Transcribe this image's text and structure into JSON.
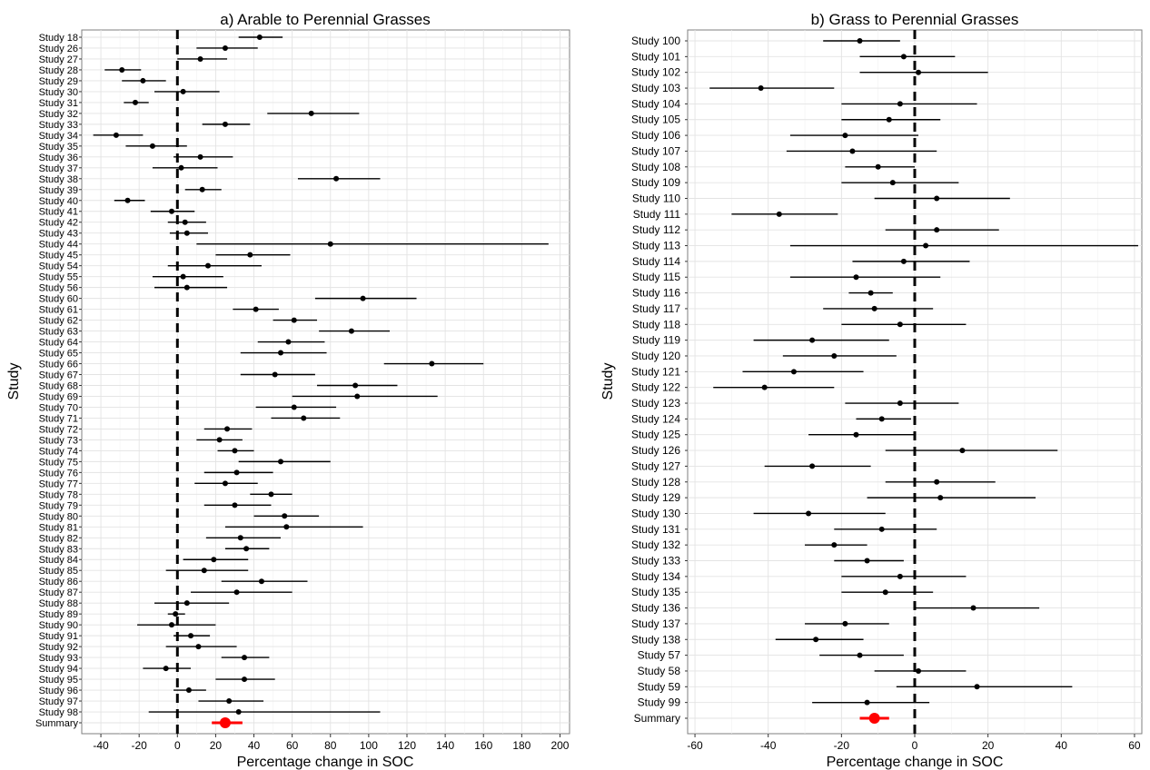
{
  "chart_data": [
    {
      "panel": "a",
      "type": "forest",
      "title": "a) Arable to Perennial Grasses",
      "xlabel": "Percentage change in SOC",
      "ylabel": "Study",
      "xlim": [
        -50,
        205
      ],
      "xticks": [
        -40,
        -20,
        0,
        20,
        40,
        60,
        80,
        100,
        120,
        140,
        160,
        180,
        200
      ],
      "reference_line": 0,
      "studies": [
        {
          "label": "Study 18",
          "est": 43,
          "lo": 32,
          "hi": 55
        },
        {
          "label": "Study 26",
          "est": 25,
          "lo": 10,
          "hi": 42
        },
        {
          "label": "Study 27",
          "est": 12,
          "lo": 0,
          "hi": 26
        },
        {
          "label": "Study 28",
          "est": -29,
          "lo": -38,
          "hi": -19
        },
        {
          "label": "Study 29",
          "est": -18,
          "lo": -29,
          "hi": -6
        },
        {
          "label": "Study 30",
          "est": 3,
          "lo": -12,
          "hi": 22
        },
        {
          "label": "Study 31",
          "est": -22,
          "lo": -28,
          "hi": -15
        },
        {
          "label": "Study 32",
          "est": 70,
          "lo": 47,
          "hi": 95
        },
        {
          "label": "Study 33",
          "est": 25,
          "lo": 13,
          "hi": 38
        },
        {
          "label": "Study 34",
          "est": -32,
          "lo": -44,
          "hi": -18
        },
        {
          "label": "Study 35",
          "est": -13,
          "lo": -27,
          "hi": 5
        },
        {
          "label": "Study 36",
          "est": 12,
          "lo": -2,
          "hi": 29
        },
        {
          "label": "Study 37",
          "est": 2,
          "lo": -13,
          "hi": 21
        },
        {
          "label": "Study 38",
          "est": 83,
          "lo": 63,
          "hi": 106
        },
        {
          "label": "Study 39",
          "est": 13,
          "lo": 4,
          "hi": 23
        },
        {
          "label": "Study 40",
          "est": -26,
          "lo": -33,
          "hi": -17
        },
        {
          "label": "Study 41",
          "est": -3,
          "lo": -14,
          "hi": 9
        },
        {
          "label": "Study 42",
          "est": 4,
          "lo": -5,
          "hi": 15
        },
        {
          "label": "Study 43",
          "est": 5,
          "lo": -4,
          "hi": 16
        },
        {
          "label": "Study 44",
          "est": 80,
          "lo": 10,
          "hi": 194
        },
        {
          "label": "Study 45",
          "est": 38,
          "lo": 20,
          "hi": 59
        },
        {
          "label": "Study 54",
          "est": 16,
          "lo": -5,
          "hi": 44
        },
        {
          "label": "Study 55",
          "est": 3,
          "lo": -13,
          "hi": 24
        },
        {
          "label": "Study 56",
          "est": 5,
          "lo": -12,
          "hi": 26
        },
        {
          "label": "Study 60",
          "est": 97,
          "lo": 72,
          "hi": 125
        },
        {
          "label": "Study 61",
          "est": 41,
          "lo": 29,
          "hi": 53
        },
        {
          "label": "Study 62",
          "est": 61,
          "lo": 50,
          "hi": 73
        },
        {
          "label": "Study 63",
          "est": 91,
          "lo": 74,
          "hi": 111
        },
        {
          "label": "Study 64",
          "est": 58,
          "lo": 42,
          "hi": 77
        },
        {
          "label": "Study 65",
          "est": 54,
          "lo": 33,
          "hi": 78
        },
        {
          "label": "Study 66",
          "est": 133,
          "lo": 108,
          "hi": 160
        },
        {
          "label": "Study 67",
          "est": 51,
          "lo": 33,
          "hi": 72
        },
        {
          "label": "Study 68",
          "est": 93,
          "lo": 73,
          "hi": 115
        },
        {
          "label": "Study 69",
          "est": 94,
          "lo": 60,
          "hi": 136
        },
        {
          "label": "Study 70",
          "est": 61,
          "lo": 41,
          "hi": 83
        },
        {
          "label": "Study 71",
          "est": 66,
          "lo": 49,
          "hi": 85
        },
        {
          "label": "Study 72",
          "est": 26,
          "lo": 14,
          "hi": 39
        },
        {
          "label": "Study 73",
          "est": 22,
          "lo": 10,
          "hi": 34
        },
        {
          "label": "Study 74",
          "est": 30,
          "lo": 21,
          "hi": 40
        },
        {
          "label": "Study 75",
          "est": 54,
          "lo": 32,
          "hi": 80
        },
        {
          "label": "Study 76",
          "est": 31,
          "lo": 14,
          "hi": 50
        },
        {
          "label": "Study 77",
          "est": 25,
          "lo": 9,
          "hi": 42
        },
        {
          "label": "Study 78",
          "est": 49,
          "lo": 38,
          "hi": 60
        },
        {
          "label": "Study 79",
          "est": 30,
          "lo": 14,
          "hi": 49
        },
        {
          "label": "Study 80",
          "est": 56,
          "lo": 40,
          "hi": 74
        },
        {
          "label": "Study 81",
          "est": 57,
          "lo": 25,
          "hi": 97
        },
        {
          "label": "Study 82",
          "est": 33,
          "lo": 15,
          "hi": 54
        },
        {
          "label": "Study 83",
          "est": 36,
          "lo": 25,
          "hi": 48
        },
        {
          "label": "Study 84",
          "est": 19,
          "lo": 3,
          "hi": 37
        },
        {
          "label": "Study 85",
          "est": 14,
          "lo": -6,
          "hi": 37
        },
        {
          "label": "Study 86",
          "est": 44,
          "lo": 23,
          "hi": 68
        },
        {
          "label": "Study 87",
          "est": 31,
          "lo": 7,
          "hi": 60
        },
        {
          "label": "Study 88",
          "est": 5,
          "lo": -12,
          "hi": 27
        },
        {
          "label": "Study 89",
          "est": -1,
          "lo": -5,
          "hi": 4
        },
        {
          "label": "Study 90",
          "est": -3,
          "lo": -21,
          "hi": 20
        },
        {
          "label": "Study 91",
          "est": 7,
          "lo": -2,
          "hi": 17
        },
        {
          "label": "Study 92",
          "est": 11,
          "lo": -6,
          "hi": 31
        },
        {
          "label": "Study 93",
          "est": 35,
          "lo": 23,
          "hi": 48
        },
        {
          "label": "Study 94",
          "est": -6,
          "lo": -18,
          "hi": 7
        },
        {
          "label": "Study 95",
          "est": 35,
          "lo": 20,
          "hi": 51
        },
        {
          "label": "Study 96",
          "est": 6,
          "lo": -2,
          "hi": 15
        },
        {
          "label": "Study 97",
          "est": 27,
          "lo": 11,
          "hi": 45
        },
        {
          "label": "Study 98",
          "est": 32,
          "lo": -15,
          "hi": 106
        }
      ],
      "summary": {
        "label": "Summary",
        "est": 25,
        "lo": 18,
        "hi": 34
      }
    },
    {
      "panel": "b",
      "type": "forest",
      "title": "b) Grass to Perennial Grasses",
      "xlabel": "Percentage change in SOC",
      "ylabel": "Study",
      "xlim": [
        -62,
        62
      ],
      "xticks": [
        -60,
        -40,
        -20,
        0,
        20,
        40,
        60
      ],
      "reference_line": 0,
      "studies": [
        {
          "label": "Study 100",
          "est": -15,
          "lo": -25,
          "hi": -4
        },
        {
          "label": "Study 101",
          "est": -3,
          "lo": -15,
          "hi": 11
        },
        {
          "label": "Study 102",
          "est": 1,
          "lo": -15,
          "hi": 20
        },
        {
          "label": "Study 103",
          "est": -42,
          "lo": -56,
          "hi": -22
        },
        {
          "label": "Study 104",
          "est": -4,
          "lo": -20,
          "hi": 17
        },
        {
          "label": "Study 105",
          "est": -7,
          "lo": -20,
          "hi": 7
        },
        {
          "label": "Study 106",
          "est": -19,
          "lo": -34,
          "hi": 1
        },
        {
          "label": "Study 107",
          "est": -17,
          "lo": -35,
          "hi": 6
        },
        {
          "label": "Study 108",
          "est": -10,
          "lo": -19,
          "hi": 0
        },
        {
          "label": "Study 109",
          "est": -6,
          "lo": -20,
          "hi": 12
        },
        {
          "label": "Study 110",
          "est": 6,
          "lo": -11,
          "hi": 26
        },
        {
          "label": "Study 111",
          "est": -37,
          "lo": -50,
          "hi": -21
        },
        {
          "label": "Study 112",
          "est": 6,
          "lo": -8,
          "hi": 23
        },
        {
          "label": "Study 113",
          "est": 3,
          "lo": -34,
          "hi": 61
        },
        {
          "label": "Study 114",
          "est": -3,
          "lo": -17,
          "hi": 15
        },
        {
          "label": "Study 115",
          "est": -16,
          "lo": -34,
          "hi": 7
        },
        {
          "label": "Study 116",
          "est": -12,
          "lo": -18,
          "hi": -6
        },
        {
          "label": "Study 117",
          "est": -11,
          "lo": -25,
          "hi": 5
        },
        {
          "label": "Study 118",
          "est": -4,
          "lo": -20,
          "hi": 14
        },
        {
          "label": "Study 119",
          "est": -28,
          "lo": -44,
          "hi": -7
        },
        {
          "label": "Study 120",
          "est": -22,
          "lo": -36,
          "hi": -5
        },
        {
          "label": "Study 121",
          "est": -33,
          "lo": -47,
          "hi": -14
        },
        {
          "label": "Study 122",
          "est": -41,
          "lo": -55,
          "hi": -22
        },
        {
          "label": "Study 123",
          "est": -4,
          "lo": -19,
          "hi": 12
        },
        {
          "label": "Study 124",
          "est": -9,
          "lo": -16,
          "hi": -1
        },
        {
          "label": "Study 125",
          "est": -16,
          "lo": -29,
          "hi": 0
        },
        {
          "label": "Study 126",
          "est": 13,
          "lo": -8,
          "hi": 39
        },
        {
          "label": "Study 127",
          "est": -28,
          "lo": -41,
          "hi": -12
        },
        {
          "label": "Study 128",
          "est": 6,
          "lo": -8,
          "hi": 22
        },
        {
          "label": "Study 129",
          "est": 7,
          "lo": -13,
          "hi": 33
        },
        {
          "label": "Study 130",
          "est": -29,
          "lo": -44,
          "hi": -8
        },
        {
          "label": "Study 131",
          "est": -9,
          "lo": -22,
          "hi": 6
        },
        {
          "label": "Study 132",
          "est": -22,
          "lo": -30,
          "hi": -13
        },
        {
          "label": "Study 133",
          "est": -13,
          "lo": -22,
          "hi": -3
        },
        {
          "label": "Study 134",
          "est": -4,
          "lo": -20,
          "hi": 14
        },
        {
          "label": "Study 135",
          "est": -8,
          "lo": -20,
          "hi": 5
        },
        {
          "label": "Study 136",
          "est": 16,
          "lo": 0,
          "hi": 34
        },
        {
          "label": "Study 137",
          "est": -19,
          "lo": -30,
          "hi": -7
        },
        {
          "label": "Study 138",
          "est": -27,
          "lo": -38,
          "hi": -14
        },
        {
          "label": "Study 57",
          "est": -15,
          "lo": -26,
          "hi": -3
        },
        {
          "label": "Study 58",
          "est": 1,
          "lo": -11,
          "hi": 14
        },
        {
          "label": "Study 59",
          "est": 17,
          "lo": -5,
          "hi": 43
        },
        {
          "label": "Study 99",
          "est": -13,
          "lo": -28,
          "hi": 4
        }
      ],
      "summary": {
        "label": "Summary",
        "est": -11,
        "lo": -15,
        "hi": -7
      }
    }
  ],
  "colors": {
    "points": "#000000",
    "summary": "#ff0000",
    "zero_line": "#000000"
  }
}
